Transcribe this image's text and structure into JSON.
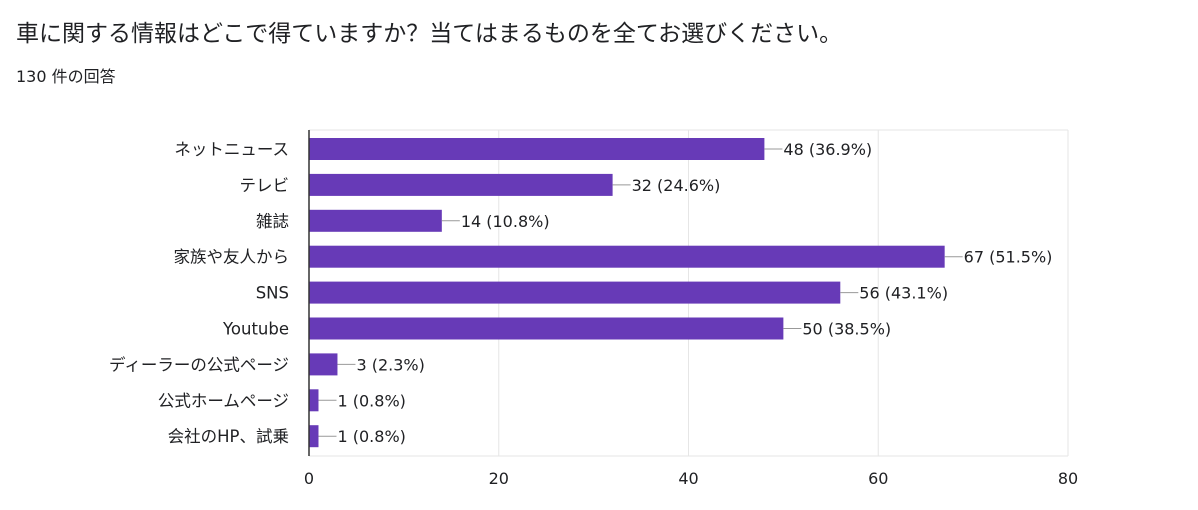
{
  "header": {
    "title": "車に関する情報はどこで得ていますか？当てはまるものを全てお選びください。",
    "response_count": "130 件の回答"
  },
  "colors": {
    "bar": "#673ab7",
    "grid": "#e6e6e6",
    "axis": "#333333",
    "leader": "#999999"
  },
  "chart_data": {
    "type": "bar",
    "orientation": "horizontal",
    "title": "",
    "xlabel": "",
    "ylabel": "",
    "xlim": [
      0,
      80
    ],
    "xticks": [
      0,
      20,
      40,
      60,
      80
    ],
    "grid": true,
    "categories": [
      "ネットニュース",
      "テレビ",
      "雑誌",
      "家族や友人から",
      "SNS",
      "Youtube",
      "ディーラーの公式ページ",
      "公式ホームページ",
      "会社のHP、試乗"
    ],
    "values": [
      48,
      32,
      14,
      67,
      56,
      50,
      3,
      1,
      1
    ],
    "percent_labels": [
      "48 (36.9%)",
      "32 (24.6%)",
      "14 (10.8%)",
      "67 (51.5%)",
      "56 (43.1%)",
      "50 (38.5%)",
      "3 (2.3%)",
      "1 (0.8%)",
      "1 (0.8%)"
    ]
  }
}
